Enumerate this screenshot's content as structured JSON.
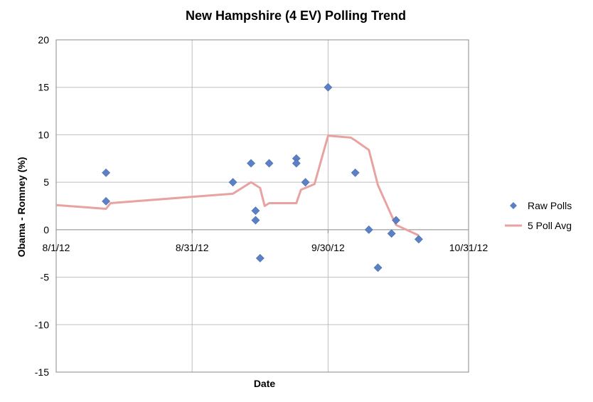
{
  "chart_data": {
    "type": "scatter",
    "title": "New Hampshire (4 EV) Polling Trend",
    "xlabel": "Date",
    "ylabel": "Obama - Romney (%)",
    "xlim": [
      "2012-08-01",
      "2012-10-31"
    ],
    "ylim": [
      -15,
      20
    ],
    "x_ticks": [
      "8/1/12",
      "8/31/12",
      "9/30/12",
      "10/31/12"
    ],
    "y_ticks": [
      20,
      15,
      10,
      5,
      0,
      -5,
      -10,
      -15
    ],
    "grid": true,
    "legend_position": "right",
    "colors": {
      "raw": "#5b80c4",
      "avg": "#e8a3a1",
      "grid": "#bfbfbf"
    },
    "series": [
      {
        "name": "Raw Polls",
        "kind": "scatter",
        "x": [
          "2012-08-12",
          "2012-08-12",
          "2012-09-09",
          "2012-09-13",
          "2012-09-14",
          "2012-09-14",
          "2012-09-15",
          "2012-09-17",
          "2012-09-23",
          "2012-09-23",
          "2012-09-25",
          "2012-09-30",
          "2012-10-06",
          "2012-10-09",
          "2012-10-11",
          "2012-10-14",
          "2012-10-15",
          "2012-10-20"
        ],
        "y": [
          6,
          3,
          5,
          7,
          2,
          1,
          -3,
          7,
          7.5,
          7,
          5,
          15,
          6,
          0,
          -4,
          -0.4,
          1,
          -1
        ]
      },
      {
        "name": "5 Poll Avg",
        "kind": "line",
        "x": [
          "2012-08-01",
          "2012-08-12",
          "2012-08-13",
          "2012-09-09",
          "2012-09-13",
          "2012-09-15",
          "2012-09-16",
          "2012-09-17",
          "2012-09-23",
          "2012-09-24",
          "2012-09-27",
          "2012-09-29",
          "2012-09-30",
          "2012-10-05",
          "2012-10-06",
          "2012-10-09",
          "2012-10-11",
          "2012-10-14",
          "2012-10-15",
          "2012-10-20"
        ],
        "y": [
          2.6,
          2.2,
          2.8,
          3.8,
          5.0,
          4.4,
          2.5,
          2.8,
          2.8,
          4.2,
          4.8,
          8.2,
          9.9,
          9.7,
          9.4,
          8.4,
          4.7,
          1.5,
          0.5,
          -0.6
        ]
      }
    ]
  }
}
